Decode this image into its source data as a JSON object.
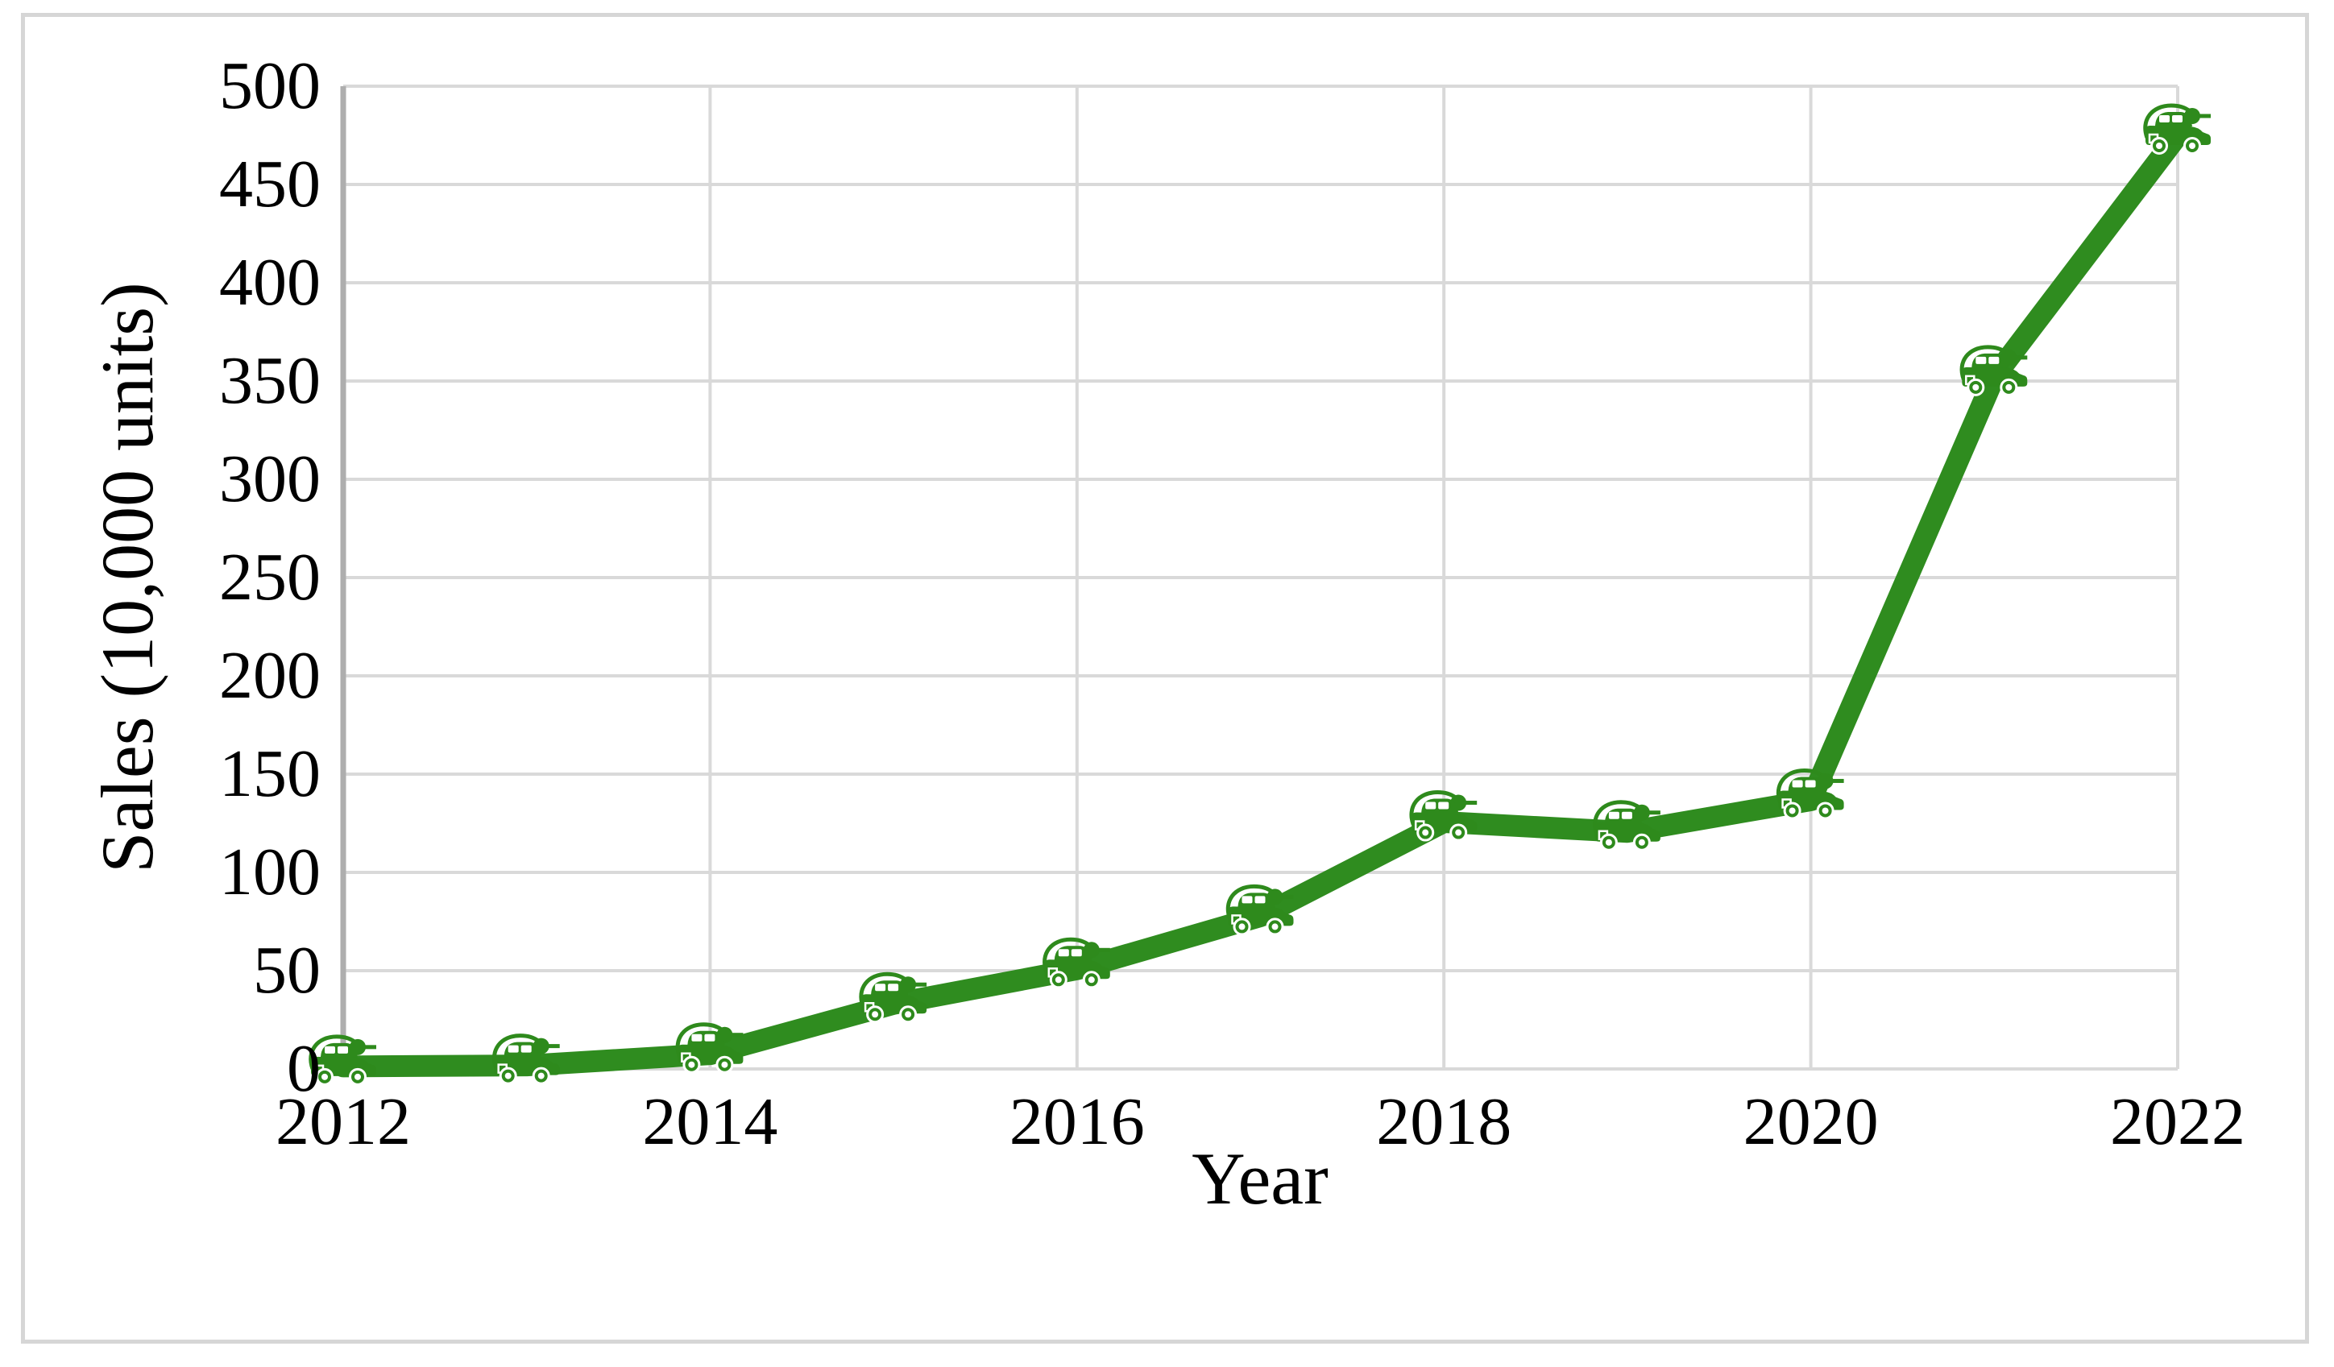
{
  "figure": {
    "background": "#ffffff",
    "border_color": "#d6d6d6"
  },
  "chart_data": {
    "type": "line",
    "title": "",
    "xlabel": "Year",
    "ylabel": "Sales (10,000 units)",
    "x": [
      2012,
      2013,
      2014,
      2015,
      2016,
      2017,
      2018,
      2019,
      2020,
      2021,
      2022
    ],
    "values": [
      1.3,
      1.8,
      7.5,
      33.1,
      50.7,
      77.7,
      125.6,
      120.6,
      136.7,
      352.1,
      475
    ],
    "ylim": [
      0,
      500
    ],
    "y_tick_step": 50,
    "y_tick_labels": [
      "0",
      "50",
      "100",
      "150",
      "200",
      "250",
      "300",
      "350",
      "400",
      "450",
      "500"
    ],
    "x_tick_years": [
      2012,
      2014,
      2016,
      2018,
      2020,
      2022
    ],
    "x_tick_labels": [
      "2012",
      "2014",
      "2016",
      "2018",
      "2020",
      "2022"
    ],
    "legend": "none",
    "grid": {
      "horizontal": true,
      "vertical_on_labeled_years": true
    },
    "line_color": "#2f8c1f",
    "marker_color": "#2e8a1c",
    "marker_icon": "ev-car-icon",
    "gridline_color": "#d9d9d9",
    "axis_line_color": "#aeaeae",
    "text_color": "#000000"
  }
}
